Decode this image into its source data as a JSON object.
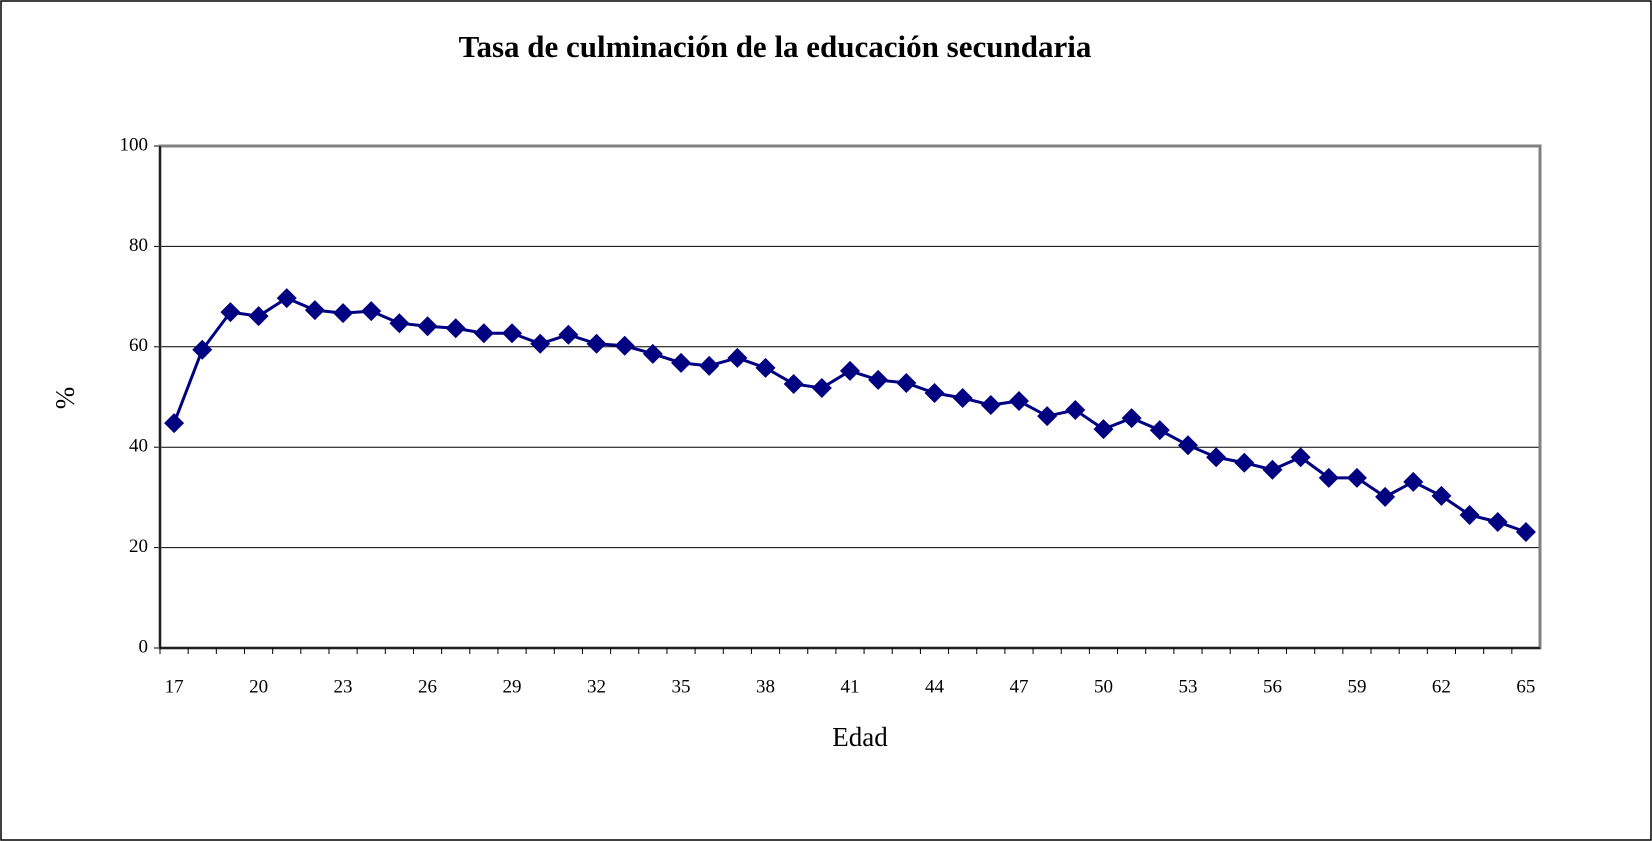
{
  "chart_data": {
    "type": "line",
    "title": "Tasa de  culminación de la educación secundaria",
    "xlabel": "Edad",
    "ylabel": "%",
    "categories": [
      "17",
      null,
      null,
      "20",
      null,
      null,
      "23",
      null,
      null,
      "26",
      null,
      null,
      "29",
      null,
      null,
      "32",
      null,
      null,
      "35",
      null,
      null,
      "38",
      null,
      null,
      "41",
      null,
      null,
      "44",
      null,
      null,
      "47",
      null,
      null,
      "50",
      null,
      null,
      "53",
      null,
      null,
      "56",
      null,
      null,
      "59",
      null,
      null,
      "62",
      null,
      null,
      "65"
    ],
    "values": [
      44.8,
      59.4,
      66.9,
      66.1,
      69.7,
      67.3,
      66.7,
      67.1,
      64.7,
      64.1,
      63.7,
      62.7,
      62.7,
      60.6,
      62.4,
      60.6,
      60.2,
      58.6,
      56.8,
      56.2,
      57.8,
      55.8,
      52.6,
      51.8,
      55.2,
      53.4,
      52.8,
      50.8,
      49.8,
      48.4,
      49.2,
      46.2,
      47.4,
      43.6,
      45.8,
      43.4,
      40.4,
      38.0,
      36.9,
      35.5,
      38.0,
      33.9,
      33.9,
      30.1,
      33.1,
      30.3,
      26.5,
      25.1,
      23.1
    ],
    "color": "#000080",
    "ylim": [
      0,
      100
    ],
    "yticks": [
      0,
      20,
      40,
      60,
      80,
      100
    ],
    "grid": true
  }
}
